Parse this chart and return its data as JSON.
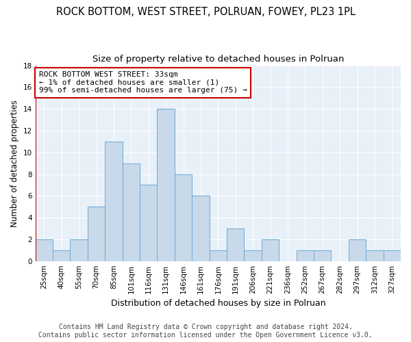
{
  "title": "ROCK BOTTOM, WEST STREET, POLRUAN, FOWEY, PL23 1PL",
  "subtitle": "Size of property relative to detached houses in Polruan",
  "xlabel": "Distribution of detached houses by size in Polruan",
  "ylabel": "Number of detached properties",
  "categories": [
    "25sqm",
    "40sqm",
    "55sqm",
    "70sqm",
    "85sqm",
    "101sqm",
    "116sqm",
    "131sqm",
    "146sqm",
    "161sqm",
    "176sqm",
    "191sqm",
    "206sqm",
    "221sqm",
    "236sqm",
    "252sqm",
    "267sqm",
    "282sqm",
    "297sqm",
    "312sqm",
    "327sqm"
  ],
  "values": [
    2,
    1,
    2,
    5,
    11,
    9,
    7,
    14,
    8,
    6,
    1,
    3,
    1,
    2,
    0,
    1,
    1,
    0,
    2,
    1,
    1
  ],
  "bar_color": "#c8d9ea",
  "bar_edge_color": "#6aaad4",
  "annotation_box_text_line1": "ROCK BOTTOM WEST STREET: 33sqm",
  "annotation_box_text_line2": "← 1% of detached houses are smaller (1)",
  "annotation_box_text_line3": "99% of semi-detached houses are larger (75) →",
  "annotation_box_color": "#ffffff",
  "annotation_box_edge_color": "#cc0000",
  "ylim": [
    0,
    18
  ],
  "yticks": [
    0,
    2,
    4,
    6,
    8,
    10,
    12,
    14,
    16,
    18
  ],
  "background_color": "#e8f0f8",
  "footer_line1": "Contains HM Land Registry data © Crown copyright and database right 2024.",
  "footer_line2": "Contains public sector information licensed under the Open Government Licence v3.0.",
  "title_fontsize": 10.5,
  "subtitle_fontsize": 9.5,
  "xlabel_fontsize": 9,
  "ylabel_fontsize": 8.5,
  "tick_fontsize": 7.5,
  "annotation_fontsize": 8,
  "footer_fontsize": 7,
  "red_line_color": "#cc0000",
  "grid_color": "#ffffff"
}
